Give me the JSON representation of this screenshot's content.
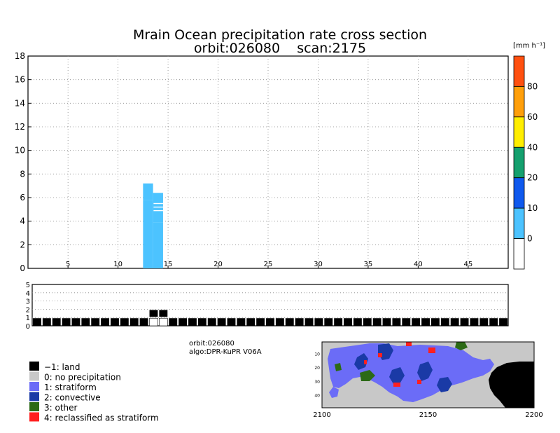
{
  "chart_data": [
    {
      "type": "heatmap",
      "title": "Mrain Ocean precipitation rate cross section",
      "subtitle": "orbit:026080    scan:2175",
      "xlabel": "",
      "ylabel": "",
      "xlim": [
        1,
        49
      ],
      "ylim": [
        0,
        18
      ],
      "x_ticks": [
        5,
        10,
        15,
        20,
        25,
        30,
        35,
        40,
        45
      ],
      "y_ticks": [
        0,
        2,
        4,
        6,
        8,
        10,
        12,
        14,
        16,
        18
      ],
      "grid": true,
      "colorbar": {
        "unit": "[mm h⁻¹]",
        "tick_labels": [
          "0",
          "10",
          "20",
          "40",
          "60",
          "80"
        ],
        "colors": [
          "#ffffff",
          "#4cc3ff",
          "#0f59ee",
          "#14a06e",
          "#ffee00",
          "#ff9f0a",
          "#ff5010"
        ]
      },
      "cells": [
        {
          "x0": 12.5,
          "x1": 13.5,
          "y0": 0,
          "y1": 5.8,
          "color": "#4cc3ff"
        },
        {
          "x0": 12.5,
          "x1": 13.5,
          "y0": 5.8,
          "y1": 7.2,
          "color": "#4cc3ff"
        },
        {
          "x0": 13.5,
          "x1": 14.5,
          "y0": 0,
          "y1": 3.9,
          "color": "#4cc3ff"
        },
        {
          "x0": 13.5,
          "x1": 14.5,
          "y0": 3.9,
          "y1": 6.4,
          "color": "#4cc3ff"
        }
      ]
    },
    {
      "type": "bar",
      "title": "",
      "xlabel": "",
      "ylabel": "",
      "ylim": [
        0,
        5
      ],
      "y_ticks": [
        0,
        1,
        2,
        3,
        4,
        5
      ],
      "grid": true,
      "x": [
        1,
        2,
        3,
        4,
        5,
        6,
        7,
        8,
        9,
        10,
        11,
        12,
        13,
        14,
        15,
        16,
        17,
        18,
        19,
        20,
        21,
        22,
        23,
        24,
        25,
        26,
        27,
        28,
        29,
        30,
        31,
        32,
        33,
        34,
        35,
        36,
        37,
        38,
        39,
        40,
        41,
        42,
        43,
        44,
        45,
        46,
        47,
        48,
        49
      ],
      "values": [
        0,
        0,
        0,
        0,
        0,
        0,
        0,
        0,
        0,
        0,
        0,
        0,
        1,
        1,
        0,
        0,
        0,
        0,
        0,
        0,
        0,
        0,
        0,
        0,
        0,
        0,
        0,
        0,
        0,
        0,
        0,
        0,
        0,
        0,
        0,
        0,
        0,
        0,
        0,
        0,
        0,
        0,
        0,
        0,
        0,
        0,
        0,
        0,
        0
      ]
    },
    {
      "type": "heatmap",
      "title": "",
      "xlabel": "",
      "ylabel": "",
      "xlim": [
        2100,
        2200
      ],
      "ylim": [
        49,
        1
      ],
      "x_ticks": [
        2100,
        2150,
        2200
      ],
      "y_ticks": [
        10,
        20,
        30,
        40
      ],
      "categories": [
        "land",
        "no precipitation",
        "stratiform",
        "convective",
        "other",
        "reclassified as stratiform"
      ],
      "colors": {
        "land": "#000000",
        "no_precip": "#c8c8c8",
        "stratiform": "#6b6cf7",
        "convective": "#1a3aa6",
        "other": "#2c6a16",
        "reclassified": "#ff1f1f"
      }
    }
  ],
  "info": {
    "orbit": "orbit:026080",
    "algo": "algo:DPR-KuPR V06A"
  },
  "legend": [
    {
      "label": "−1: land",
      "color": "#000000"
    },
    {
      "label": "0: no precipitation",
      "color": "#c8c8c8"
    },
    {
      "label": "1: stratiform",
      "color": "#6b6cf7"
    },
    {
      "label": "2: convective",
      "color": "#1a3aa6"
    },
    {
      "label": "3: other",
      "color": "#2c6a16"
    },
    {
      "label": "4: reclassified as stratiform",
      "color": "#ff1f1f"
    }
  ]
}
